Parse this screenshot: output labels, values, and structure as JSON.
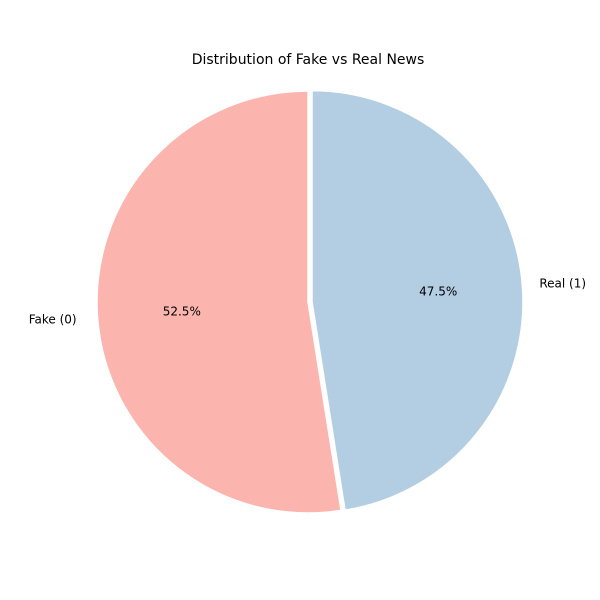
{
  "chart_data": {
    "type": "pie",
    "title": "Distribution of Fake vs Real News",
    "labels": [
      "Fake (0)",
      "Real (1)"
    ],
    "values": [
      52.5,
      47.5
    ],
    "value_labels": [
      "52.5%",
      "47.5%"
    ],
    "colors": [
      "#fbb4ae",
      "#b3cde3"
    ],
    "start_angle": "top",
    "direction": "counterclockwise",
    "legend": "none"
  }
}
